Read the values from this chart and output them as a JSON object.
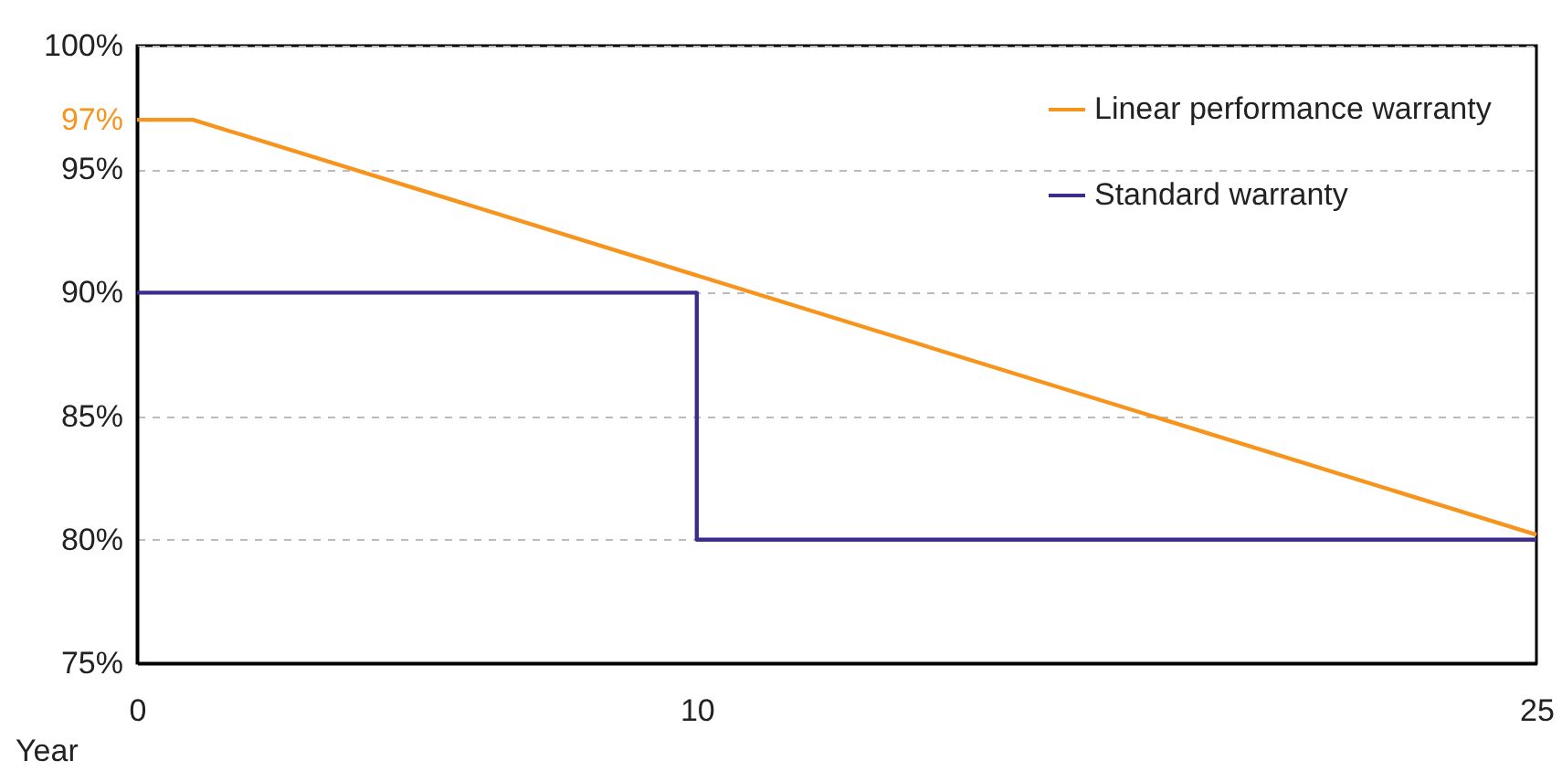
{
  "chart_data": {
    "type": "line",
    "xlabel": "Year",
    "xlim": [
      0,
      25
    ],
    "xticks": [
      0,
      10,
      25
    ],
    "ylim": [
      75,
      100
    ],
    "yticks": [
      {
        "value": 75,
        "label": "75%"
      },
      {
        "value": 80,
        "label": "80%"
      },
      {
        "value": 85,
        "label": "85%"
      },
      {
        "value": 90,
        "label": "90%"
      },
      {
        "value": 95,
        "label": "95%"
      },
      {
        "value": 97,
        "label": "97%"
      },
      {
        "value": 100,
        "label": "100%"
      }
    ],
    "grid": "y",
    "legend": "top right",
    "line_style": "solid",
    "marker": "none",
    "series": [
      {
        "name": "Linear performance warranty",
        "color": "#f7941d",
        "x": [
          0,
          1,
          25
        ],
        "values": [
          97,
          97,
          80.2
        ]
      },
      {
        "name": "Standard warranty",
        "color": "#3d2b8e",
        "type": "step",
        "x": [
          0,
          10,
          25
        ],
        "values": [
          90,
          80,
          80
        ]
      }
    ]
  }
}
